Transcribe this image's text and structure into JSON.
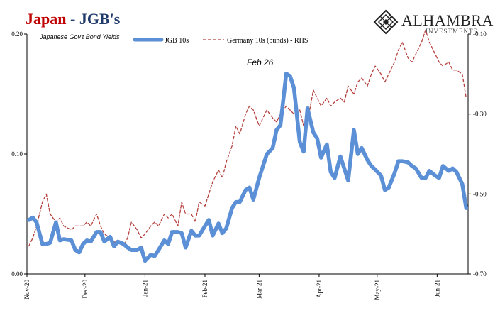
{
  "header": {
    "title_main": "Japan",
    "title_sep": " - ",
    "title_rest": "JGB's",
    "subtitle": "Japanese Gov't Bond Yields",
    "logo_name": "ALHAMBRA",
    "logo_sub": "INVESTMENTS",
    "logo_icon": "diamond-lattice-icon"
  },
  "colors": {
    "title_red": "#c00000",
    "title_blue": "#1f3a6b",
    "jgb_line": "#5b8fd6",
    "germany_line": "#b5403e",
    "axis": "#000000"
  },
  "chart_data": {
    "type": "line",
    "annotation": {
      "label": "Feb 26",
      "x": "2021-02-26"
    },
    "x": [
      "Nov-20",
      "Dec-20",
      "Jan-21",
      "Feb-21",
      "Mar-21",
      "Apr-21",
      "May-21",
      "Jun-21"
    ],
    "x_tick_labels": [
      "Nov-20",
      "Dec-20",
      "Jan-21",
      "Feb-21",
      "Mar-21",
      "Apr-21",
      "May-21",
      "Jun-21"
    ],
    "y_left": {
      "lim": [
        0.0,
        0.2
      ],
      "ticks": [
        0.0,
        0.1,
        0.2
      ],
      "tick_labels": [
        "0.00",
        "0.10",
        "0.20"
      ]
    },
    "y_right": {
      "lim": [
        -0.7,
        -0.1
      ],
      "ticks": [
        -0.7,
        -0.5,
        -0.3,
        -0.1
      ],
      "tick_labels": [
        "-0.70",
        "-0.50",
        "-0.30",
        "-0.10"
      ],
      "axis_note": "RHS"
    },
    "legend": {
      "placement": "top-center"
    },
    "grid": false,
    "series": [
      {
        "name": "JGB 10s",
        "axis": "left",
        "style": "solid-thick",
        "points": [
          [
            "2020-11-02",
            0.045
          ],
          [
            "2020-11-04",
            0.047
          ],
          [
            "2020-11-06",
            0.043
          ],
          [
            "2020-11-09",
            0.025
          ],
          [
            "2020-11-11",
            0.025
          ],
          [
            "2020-11-13",
            0.026
          ],
          [
            "2020-11-16",
            0.043
          ],
          [
            "2020-11-18",
            0.028
          ],
          [
            "2020-11-20",
            0.029
          ],
          [
            "2020-11-24",
            0.028
          ],
          [
            "2020-11-26",
            0.02
          ],
          [
            "2020-11-28",
            0.018
          ],
          [
            "2020-11-30",
            0.025
          ],
          [
            "2020-12-02",
            0.028
          ],
          [
            "2020-12-04",
            0.027
          ],
          [
            "2020-12-07",
            0.035
          ],
          [
            "2020-12-09",
            0.035
          ],
          [
            "2020-12-11",
            0.027
          ],
          [
            "2020-12-14",
            0.031
          ],
          [
            "2020-12-16",
            0.023
          ],
          [
            "2020-12-18",
            0.027
          ],
          [
            "2020-12-21",
            0.025
          ],
          [
            "2020-12-23",
            0.022
          ],
          [
            "2020-12-25",
            0.02
          ],
          [
            "2020-12-28",
            0.02
          ],
          [
            "2020-12-30",
            0.022
          ],
          [
            "2021-01-01",
            0.011
          ],
          [
            "2021-01-04",
            0.016
          ],
          [
            "2021-01-06",
            0.015
          ],
          [
            "2021-01-08",
            0.02
          ],
          [
            "2021-01-11",
            0.028
          ],
          [
            "2021-01-13",
            0.025
          ],
          [
            "2021-01-15",
            0.035
          ],
          [
            "2021-01-18",
            0.035
          ],
          [
            "2021-01-20",
            0.034
          ],
          [
            "2021-01-22",
            0.022
          ],
          [
            "2021-01-25",
            0.036
          ],
          [
            "2021-01-27",
            0.032
          ],
          [
            "2021-01-29",
            0.032
          ],
          [
            "2021-02-01",
            0.04
          ],
          [
            "2021-02-03",
            0.045
          ],
          [
            "2021-02-05",
            0.032
          ],
          [
            "2021-02-08",
            0.042
          ],
          [
            "2021-02-10",
            0.034
          ],
          [
            "2021-02-12",
            0.038
          ],
          [
            "2021-02-15",
            0.055
          ],
          [
            "2021-02-17",
            0.06
          ],
          [
            "2021-02-19",
            0.06
          ],
          [
            "2021-02-22",
            0.07
          ],
          [
            "2021-02-24",
            0.072
          ],
          [
            "2021-02-26",
            0.062
          ],
          [
            "2021-03-01",
            0.08
          ],
          [
            "2021-03-03",
            0.09
          ],
          [
            "2021-03-05",
            0.1
          ],
          [
            "2021-03-08",
            0.105
          ],
          [
            "2021-03-10",
            0.12
          ],
          [
            "2021-03-12",
            0.124
          ],
          [
            "2021-03-15",
            0.167
          ],
          [
            "2021-03-17",
            0.165
          ],
          [
            "2021-03-19",
            0.155
          ],
          [
            "2021-03-22",
            0.11
          ],
          [
            "2021-03-24",
            0.102
          ],
          [
            "2021-03-26",
            0.138
          ],
          [
            "2021-03-29",
            0.118
          ],
          [
            "2021-03-31",
            0.113
          ],
          [
            "2021-04-02",
            0.097
          ],
          [
            "2021-04-05",
            0.108
          ],
          [
            "2021-04-07",
            0.085
          ],
          [
            "2021-04-09",
            0.08
          ],
          [
            "2021-04-12",
            0.098
          ],
          [
            "2021-04-14",
            0.088
          ],
          [
            "2021-04-16",
            0.078
          ],
          [
            "2021-04-19",
            0.12
          ],
          [
            "2021-04-21",
            0.1
          ],
          [
            "2021-04-23",
            0.105
          ],
          [
            "2021-04-26",
            0.095
          ],
          [
            "2021-04-28",
            0.09
          ],
          [
            "2021-04-30",
            0.087
          ],
          [
            "2021-05-03",
            0.082
          ],
          [
            "2021-05-05",
            0.07
          ],
          [
            "2021-05-07",
            0.072
          ],
          [
            "2021-05-10",
            0.084
          ],
          [
            "2021-05-12",
            0.094
          ],
          [
            "2021-05-14",
            0.094
          ],
          [
            "2021-05-17",
            0.093
          ],
          [
            "2021-05-19",
            0.09
          ],
          [
            "2021-05-21",
            0.088
          ],
          [
            "2021-05-24",
            0.08
          ],
          [
            "2021-05-26",
            0.08
          ],
          [
            "2021-05-28",
            0.086
          ],
          [
            "2021-05-31",
            0.082
          ],
          [
            "2021-06-02",
            0.08
          ],
          [
            "2021-06-04",
            0.09
          ],
          [
            "2021-06-07",
            0.086
          ],
          [
            "2021-06-09",
            0.088
          ],
          [
            "2021-06-11",
            0.085
          ],
          [
            "2021-06-14",
            0.075
          ],
          [
            "2021-06-16",
            0.055
          ]
        ]
      },
      {
        "name": "Germany 10s (bunds) - RHS",
        "axis": "right",
        "style": "dashed",
        "points": [
          [
            "2020-11-02",
            -0.63
          ],
          [
            "2020-11-04",
            -0.61
          ],
          [
            "2020-11-06",
            -0.58
          ],
          [
            "2020-11-09",
            -0.52
          ],
          [
            "2020-11-11",
            -0.5
          ],
          [
            "2020-11-13",
            -0.55
          ],
          [
            "2020-11-16",
            -0.57
          ],
          [
            "2020-11-18",
            -0.56
          ],
          [
            "2020-11-20",
            -0.58
          ],
          [
            "2020-11-24",
            -0.59
          ],
          [
            "2020-11-26",
            -0.58
          ],
          [
            "2020-11-28",
            -0.58
          ],
          [
            "2020-11-30",
            -0.58
          ],
          [
            "2020-12-02",
            -0.57
          ],
          [
            "2020-12-04",
            -0.58
          ],
          [
            "2020-12-07",
            -0.55
          ],
          [
            "2020-12-09",
            -0.58
          ],
          [
            "2020-12-11",
            -0.6
          ],
          [
            "2020-12-14",
            -0.61
          ],
          [
            "2020-12-16",
            -0.62
          ],
          [
            "2020-12-18",
            -0.62
          ],
          [
            "2020-12-21",
            -0.63
          ],
          [
            "2020-12-23",
            -0.61
          ],
          [
            "2020-12-25",
            -0.57
          ],
          [
            "2020-12-28",
            -0.59
          ],
          [
            "2020-12-30",
            -0.61
          ],
          [
            "2021-01-01",
            -0.6
          ],
          [
            "2021-01-04",
            -0.58
          ],
          [
            "2021-01-06",
            -0.57
          ],
          [
            "2021-01-08",
            -0.58
          ],
          [
            "2021-01-11",
            -0.55
          ],
          [
            "2021-01-13",
            -0.56
          ],
          [
            "2021-01-15",
            -0.55
          ],
          [
            "2021-01-18",
            -0.58
          ],
          [
            "2021-01-20",
            -0.52
          ],
          [
            "2021-01-22",
            -0.55
          ],
          [
            "2021-01-25",
            -0.55
          ],
          [
            "2021-01-27",
            -0.57
          ],
          [
            "2021-01-29",
            -0.52
          ],
          [
            "2021-02-01",
            -0.53
          ],
          [
            "2021-02-03",
            -0.5
          ],
          [
            "2021-02-05",
            -0.47
          ],
          [
            "2021-02-08",
            -0.44
          ],
          [
            "2021-02-10",
            -0.46
          ],
          [
            "2021-02-12",
            -0.42
          ],
          [
            "2021-02-15",
            -0.38
          ],
          [
            "2021-02-17",
            -0.33
          ],
          [
            "2021-02-19",
            -0.35
          ],
          [
            "2021-02-22",
            -0.3
          ],
          [
            "2021-02-24",
            -0.28
          ],
          [
            "2021-02-26",
            -0.29
          ],
          [
            "2021-03-01",
            -0.33
          ],
          [
            "2021-03-03",
            -0.31
          ],
          [
            "2021-03-05",
            -0.29
          ],
          [
            "2021-03-08",
            -0.31
          ],
          [
            "2021-03-10",
            -0.32
          ],
          [
            "2021-03-12",
            -0.3
          ],
          [
            "2021-03-15",
            -0.28
          ],
          [
            "2021-03-17",
            -0.29
          ],
          [
            "2021-03-19",
            -0.3
          ],
          [
            "2021-03-22",
            -0.29
          ],
          [
            "2021-03-24",
            -0.33
          ],
          [
            "2021-03-26",
            -0.32
          ],
          [
            "2021-03-29",
            -0.24
          ],
          [
            "2021-03-31",
            -0.26
          ],
          [
            "2021-04-02",
            -0.28
          ],
          [
            "2021-04-05",
            -0.26
          ],
          [
            "2021-04-07",
            -0.28
          ],
          [
            "2021-04-09",
            -0.27
          ],
          [
            "2021-04-12",
            -0.26
          ],
          [
            "2021-04-14",
            -0.27
          ],
          [
            "2021-04-16",
            -0.23
          ],
          [
            "2021-04-19",
            -0.25
          ],
          [
            "2021-04-21",
            -0.22
          ],
          [
            "2021-04-23",
            -0.21
          ],
          [
            "2021-04-26",
            -0.23
          ],
          [
            "2021-04-28",
            -0.2
          ],
          [
            "2021-04-30",
            -0.18
          ],
          [
            "2021-05-03",
            -0.2
          ],
          [
            "2021-05-05",
            -0.22
          ],
          [
            "2021-05-07",
            -0.2
          ],
          [
            "2021-05-10",
            -0.17
          ],
          [
            "2021-05-12",
            -0.14
          ],
          [
            "2021-05-14",
            -0.12
          ],
          [
            "2021-05-17",
            -0.16
          ],
          [
            "2021-05-19",
            -0.17
          ],
          [
            "2021-05-21",
            -0.15
          ],
          [
            "2021-05-24",
            -0.12
          ],
          [
            "2021-05-26",
            -0.09
          ],
          [
            "2021-05-28",
            -0.12
          ],
          [
            "2021-05-31",
            -0.15
          ],
          [
            "2021-06-02",
            -0.17
          ],
          [
            "2021-06-04",
            -0.18
          ],
          [
            "2021-06-07",
            -0.17
          ],
          [
            "2021-06-09",
            -0.19
          ],
          [
            "2021-06-11",
            -0.19
          ],
          [
            "2021-06-14",
            -0.2
          ],
          [
            "2021-06-16",
            -0.26
          ]
        ]
      }
    ]
  }
}
